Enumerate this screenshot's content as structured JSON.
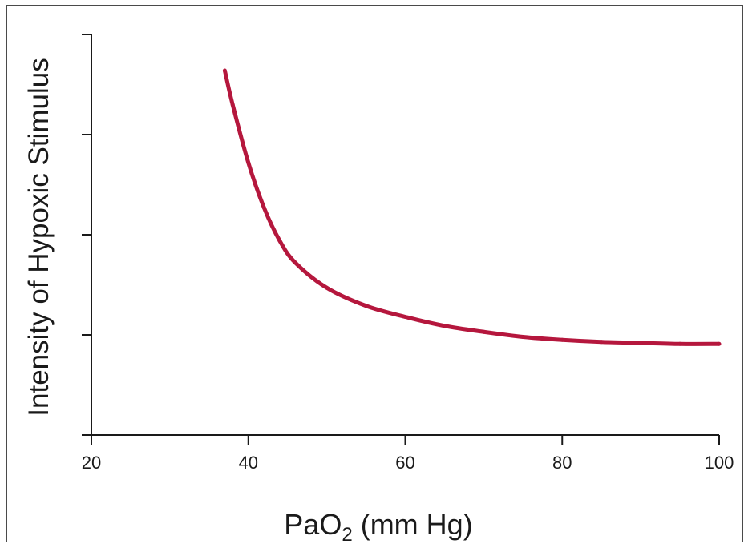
{
  "chart_data": {
    "type": "line",
    "title": "",
    "xlabel": {
      "main": "PaO",
      "subscript": "2",
      "suffix": " (mm Hg)"
    },
    "ylabel": "Intensity of Hypoxic Stimulus",
    "xlim": [
      20,
      100
    ],
    "ylim": [
      0,
      4
    ],
    "x_ticks": [
      20,
      40,
      60,
      80,
      100
    ],
    "y_ticks": [
      0,
      1,
      2,
      3,
      4
    ],
    "y_tick_labels_shown": false,
    "grid": false,
    "legend": "none",
    "series": [
      {
        "color": "#b5173d",
        "x": [
          37,
          38,
          40,
          42,
          44,
          46,
          50,
          55,
          60,
          65,
          70,
          75,
          80,
          85,
          90,
          95,
          100
        ],
        "y": [
          3.64,
          3.3,
          2.72,
          2.27,
          1.94,
          1.72,
          1.47,
          1.29,
          1.18,
          1.09,
          1.03,
          0.98,
          0.95,
          0.93,
          0.92,
          0.91,
          0.91
        ]
      }
    ]
  }
}
